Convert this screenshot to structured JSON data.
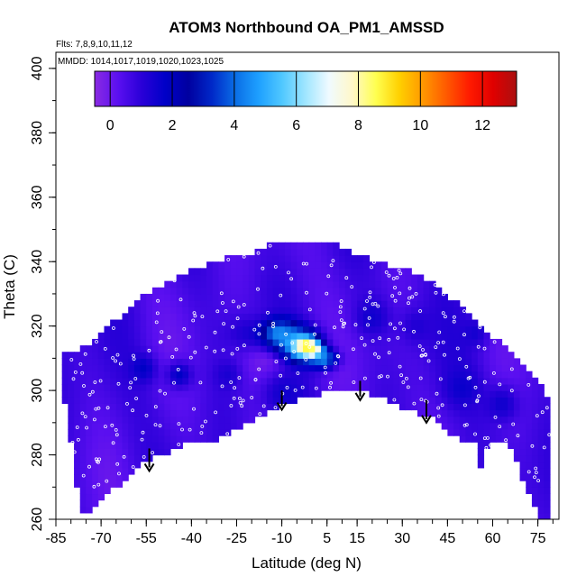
{
  "chart_data": {
    "type": "heatmap",
    "title": "ATOM3 Northbound OA_PM1_AMSSD",
    "flights_note": "Flts: 7,8,9,10,11,12",
    "dates_note": "MMDD: 1014,1017,1019,1020,1023,1025",
    "xlabel": "Latitude (deg N)",
    "ylabel": "Theta (C)",
    "xlim": [
      -85,
      82
    ],
    "ylim": [
      260,
      405
    ],
    "x_ticks": [
      -85,
      -70,
      -55,
      -40,
      -25,
      -10,
      5,
      15,
      30,
      45,
      60,
      75
    ],
    "x_tick_labels": [
      "-85",
      "-70",
      "-55",
      "-40",
      "-25",
      "-10",
      "5",
      "15",
      "30",
      "45",
      "60",
      "75"
    ],
    "y_ticks": [
      260,
      280,
      300,
      320,
      340,
      360,
      380,
      400
    ],
    "y_tick_labels": [
      "260",
      "280",
      "300",
      "320",
      "340",
      "360",
      "380",
      "400"
    ],
    "colorbar": {
      "range": [
        -0.5,
        13.1
      ],
      "ticks": [
        0,
        2,
        4,
        6,
        8,
        10,
        12
      ],
      "tick_labels": [
        "0",
        "2",
        "4",
        "6",
        "8",
        "10",
        "12"
      ],
      "colors": [
        "#8a2be2",
        "#5a0ff0",
        "#2a00d8",
        "#0000c8",
        "#0000a0",
        "#0028c8",
        "#0a6ee6",
        "#1ea0ff",
        "#50c8ff",
        "#a0e6ff",
        "#f0faff",
        "#fff8c8",
        "#ffff50",
        "#ffd000",
        "#ff9800",
        "#ff5a00",
        "#ff1a00",
        "#e00000",
        "#aa1010"
      ],
      "position": "top"
    },
    "field": {
      "background_value": 0.6,
      "data_region": {
        "latitude": [
          -82,
          -73,
          -66,
          -60,
          -55,
          -49,
          -43,
          -38,
          -33,
          -28,
          -24,
          -19,
          -14,
          -9,
          -4,
          1,
          6,
          11,
          16,
          21,
          26,
          31,
          36,
          41,
          46,
          51,
          56,
          61,
          66,
          71,
          76,
          79,
          79,
          76,
          74,
          72,
          70,
          68,
          66,
          62,
          60,
          58,
          57,
          56,
          55,
          50,
          45,
          40,
          36,
          30,
          25,
          20,
          15,
          10,
          5,
          0,
          -5,
          -10,
          -15,
          -20,
          -25,
          -30,
          -35,
          -40,
          -45,
          -50,
          -55,
          -60,
          -65,
          -70,
          -73,
          -76,
          -78,
          -80,
          -82
        ],
        "theta": [
          311,
          315,
          321,
          326,
          330,
          333,
          336,
          338,
          340,
          341,
          342,
          343,
          345,
          347,
          347,
          346,
          346,
          344,
          342,
          340,
          339,
          338,
          336,
          333,
          329,
          325,
          321,
          316,
          312,
          307,
          302,
          296,
          260,
          260,
          264,
          268,
          272,
          278,
          283,
          285,
          283,
          282,
          278,
          276,
          285,
          285,
          287,
          292,
          293,
          295,
          297,
          299,
          300,
          300,
          300,
          298,
          297,
          295,
          293,
          290,
          288,
          285,
          285,
          284,
          282,
          280,
          278,
          274,
          270,
          265,
          262,
          262,
          270,
          285,
          297
        ]
      },
      "features": [
        {
          "latitude": -15,
          "theta": 311,
          "value": -0.3,
          "spread_lat": 6,
          "spread_theta": 7
        },
        {
          "latitude": -22,
          "theta": 318,
          "value": 1.2,
          "spread_lat": 5,
          "spread_theta": 4
        },
        {
          "latitude": -9,
          "theta": 299,
          "value": 1.5,
          "spread_lat": 5,
          "spread_theta": 5
        },
        {
          "latitude": -6,
          "theta": 316,
          "value": 4.2,
          "spread_lat": 5,
          "spread_theta": 3
        },
        {
          "latitude": -11,
          "theta": 318,
          "value": 4.5,
          "spread_lat": 4,
          "spread_theta": 3
        },
        {
          "latitude": -3,
          "theta": 313,
          "value": 5.5,
          "spread_lat": 4,
          "spread_theta": 3
        },
        {
          "latitude": -2,
          "theta": 314,
          "value": 9.2,
          "spread_lat": 2.5,
          "spread_theta": 1.6
        },
        {
          "latitude": 1,
          "theta": 312,
          "value": 9.8,
          "spread_lat": 2,
          "spread_theta": 1.5
        },
        {
          "latitude": 4,
          "theta": 310,
          "value": 4.5,
          "spread_lat": 3,
          "spread_theta": 2
        },
        {
          "latitude": -44,
          "theta": 305,
          "value": 1.8,
          "spread_lat": 3,
          "spread_theta": 3
        },
        {
          "latitude": -56,
          "theta": 307,
          "value": 1.8,
          "spread_lat": 3,
          "spread_theta": 3
        },
        {
          "latitude": 20,
          "theta": 323,
          "value": 1.5,
          "spread_lat": 4,
          "spread_theta": 4
        },
        {
          "latitude": 35,
          "theta": 320,
          "value": 1.2,
          "spread_lat": 4,
          "spread_theta": 4
        },
        {
          "latitude": 50,
          "theta": 301,
          "value": 1.6,
          "spread_lat": 4,
          "spread_theta": 4
        },
        {
          "latitude": 63,
          "theta": 296,
          "value": 1.5,
          "spread_lat": 4,
          "spread_theta": 4
        },
        {
          "latitude": 54,
          "theta": 318,
          "value": 1.4,
          "spread_lat": 3,
          "spread_theta": 3
        },
        {
          "latitude": -28,
          "theta": 305,
          "value": 1.3,
          "spread_lat": 3,
          "spread_theta": 3
        }
      ]
    },
    "arrows": [
      {
        "latitude": -54,
        "theta_top": 282,
        "theta_tip": 275
      },
      {
        "latitude": -10,
        "theta_top": 300,
        "theta_tip": 294
      },
      {
        "latitude": 16,
        "theta_top": 303,
        "theta_tip": 297
      },
      {
        "latitude": 38,
        "theta_top": 297,
        "theta_tip": 290
      }
    ]
  }
}
